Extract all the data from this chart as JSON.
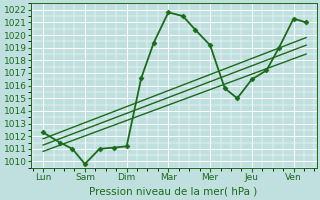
{
  "xlabel": "Pression niveau de la mer( hPa )",
  "background_color": "#c0e0e0",
  "grid_color": "#ffffff",
  "line_color": "#1a6b1a",
  "ylim": [
    1009.5,
    1022.5
  ],
  "x_labels": [
    "Lun",
    "Sam",
    "Dim",
    "Mar",
    "Mer",
    "Jeu",
    "Ven"
  ],
  "x_positions": [
    0,
    1,
    2,
    3,
    4,
    5,
    6
  ],
  "series": [
    {
      "x": [
        0.0,
        0.4,
        0.7,
        1.0,
        1.35,
        1.7,
        2.0,
        2.35,
        2.65,
        3.0,
        3.35,
        3.65,
        4.0,
        4.35,
        4.65,
        5.0,
        5.35,
        5.65,
        6.0,
        6.3
      ],
      "y": [
        1012.3,
        1011.5,
        1011.0,
        1009.8,
        1011.0,
        1011.1,
        1011.2,
        1016.6,
        1019.4,
        1021.8,
        1021.5,
        1020.4,
        1019.2,
        1015.8,
        1015.0,
        1016.5,
        1017.2,
        1019.0,
        1021.3,
        1021.0
      ],
      "marker": "D",
      "markersize": 2.5,
      "linewidth": 1.3,
      "linestyle": "-"
    },
    {
      "x": [
        0.0,
        6.3
      ],
      "y": [
        1011.8,
        1019.8
      ],
      "marker": null,
      "markersize": 0,
      "linewidth": 1.0,
      "linestyle": "-"
    },
    {
      "x": [
        0.0,
        6.3
      ],
      "y": [
        1011.3,
        1019.2
      ],
      "marker": null,
      "markersize": 0,
      "linewidth": 1.0,
      "linestyle": "-"
    },
    {
      "x": [
        0.0,
        6.3
      ],
      "y": [
        1010.8,
        1018.5
      ],
      "marker": null,
      "markersize": 0,
      "linewidth": 1.0,
      "linestyle": "-"
    }
  ],
  "yticks": [
    1010,
    1011,
    1012,
    1013,
    1014,
    1015,
    1016,
    1017,
    1018,
    1019,
    1020,
    1021,
    1022
  ],
  "label_fontsize": 7.5,
  "tick_fontsize": 6.5
}
